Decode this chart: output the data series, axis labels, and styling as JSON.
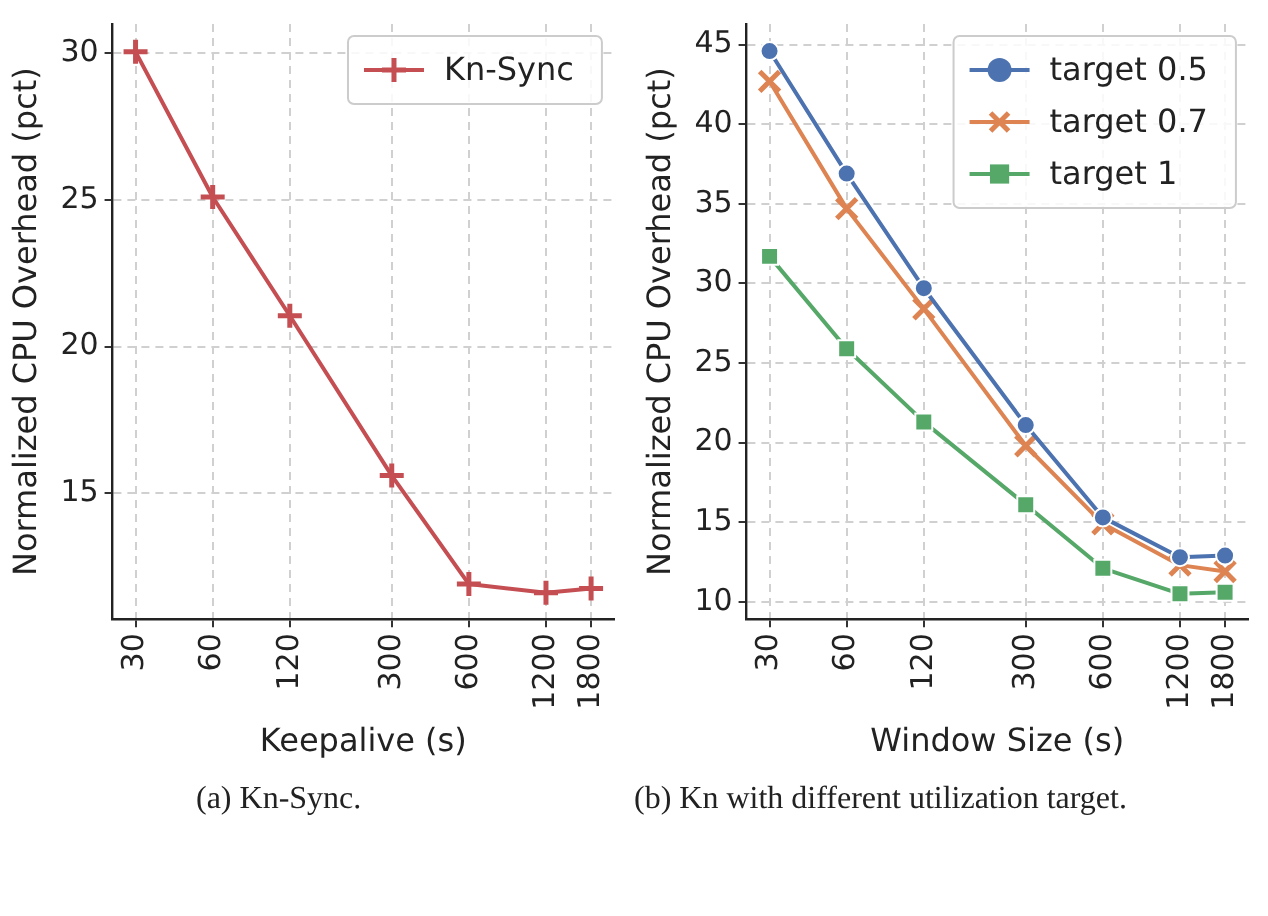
{
  "chart_data": [
    {
      "type": "line",
      "xlabel": "Keepalive (s)",
      "ylabel": "Normalized CPU Overhead (pct)",
      "annotations": [
        "(a) Kn-Sync."
      ],
      "log": "x",
      "x": [
        30,
        60,
        120,
        300,
        600,
        1200,
        1800
      ],
      "xlim": [
        24.4,
        2210
      ],
      "xticks": [
        30,
        60,
        120,
        300,
        600,
        1200,
        1800
      ],
      "ylim": [
        10.7,
        31
      ],
      "yticks": [
        15,
        20,
        25,
        30
      ],
      "grid": true,
      "legend": "top right",
      "line_style": "solid",
      "series": [
        {
          "name": "Kn-Sync",
          "color": "#c44e52",
          "marker": "cross",
          "values": [
            30.05,
            25.1,
            21.05,
            15.6,
            11.9,
            11.6,
            11.75
          ]
        }
      ]
    },
    {
      "type": "line",
      "xlabel": "Window Size (s)",
      "ylabel": "Normalized CPU Overhead (pct)",
      "annotations": [
        "(b) Kn with different utilization target."
      ],
      "log": "x",
      "x": [
        30,
        60,
        120,
        300,
        600,
        1200,
        1800
      ],
      "xlim": [
        24.4,
        2210
      ],
      "xticks": [
        30,
        60,
        120,
        300,
        600,
        1200,
        1800
      ],
      "ylim": [
        8.9,
        46.3
      ],
      "yticks": [
        10,
        15,
        20,
        25,
        30,
        35,
        40,
        45
      ],
      "grid": true,
      "legend": "top right",
      "line_style": "solid",
      "series": [
        {
          "name": "target 0.5",
          "color": "#4c72b0",
          "marker": "circle",
          "values": [
            44.6,
            36.9,
            29.7,
            21.1,
            15.3,
            12.8,
            12.9
          ]
        },
        {
          "name": "target 0.7",
          "color": "#dd8452",
          "marker": "x",
          "values": [
            42.7,
            34.7,
            28.4,
            19.8,
            14.9,
            12.3,
            11.9
          ]
        },
        {
          "name": "target 1",
          "color": "#55a868",
          "marker": "square",
          "values": [
            31.7,
            25.9,
            21.3,
            16.1,
            12.1,
            10.5,
            10.6
          ]
        }
      ]
    }
  ]
}
